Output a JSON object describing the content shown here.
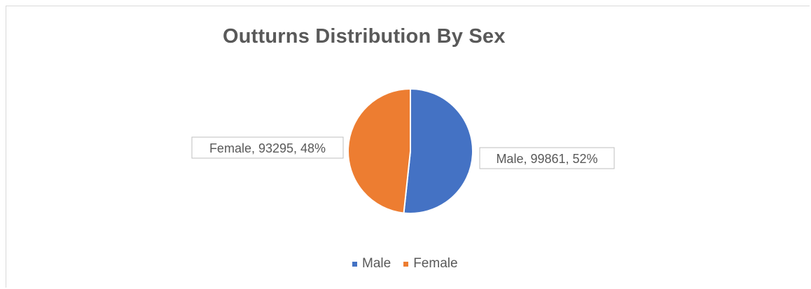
{
  "chart_data": {
    "type": "pie",
    "title": "Outturns Distribution By Sex",
    "slices": [
      {
        "name": "Male",
        "value": 99861,
        "percent": "52%",
        "color": "#4472c4",
        "label": "Male, 99861, 52%"
      },
      {
        "name": "Female",
        "value": 93295,
        "percent": "48%",
        "color": "#ed7d31",
        "label": "Female, 93295, 48%"
      }
    ],
    "legend": {
      "placement": "bottom",
      "items": [
        "Male",
        "Female"
      ]
    }
  }
}
